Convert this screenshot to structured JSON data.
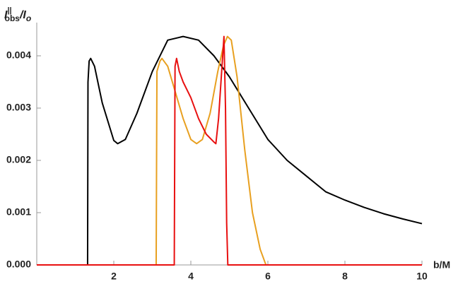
{
  "chart_data": {
    "type": "line",
    "xlabel": "b/M",
    "ylabel": {
      "base": "I",
      "superscript": "||",
      "subscript": "obs",
      "rest": "/I",
      "rest_subscript": "o"
    },
    "xlim": [
      0,
      10
    ],
    "xticks": [
      2,
      4,
      6,
      8,
      10
    ],
    "ylim": [
      0,
      0.0045
    ],
    "yticks": [
      {
        "value": 0,
        "label": "0.000"
      },
      {
        "value": 0.001,
        "label": "0.001"
      },
      {
        "value": 0.002,
        "label": "0.002"
      },
      {
        "value": 0.003,
        "label": "0.003"
      },
      {
        "value": 0.004,
        "label": "0.004"
      }
    ],
    "series": [
      {
        "color": "#000000",
        "x": [
          0,
          1.32,
          1.33,
          1.36,
          1.4,
          1.5,
          1.7,
          2.0,
          2.1,
          2.3,
          2.6,
          3.0,
          3.4,
          3.8,
          4.2,
          4.6,
          5.0,
          5.5,
          6,
          6.5,
          7,
          7.5,
          8,
          8.5,
          9,
          9.5,
          10
        ],
        "values": [
          0,
          0,
          0.0035,
          0.0039,
          0.00395,
          0.0038,
          0.0031,
          0.00238,
          0.00232,
          0.0024,
          0.0029,
          0.0037,
          0.0043,
          0.00437,
          0.0043,
          0.004,
          0.0036,
          0.003,
          0.0024,
          0.002,
          0.0017,
          0.0014,
          0.00124,
          0.0011,
          0.00098,
          0.00088,
          0.00079
        ]
      },
      {
        "color": "#e8a020",
        "x": [
          0,
          3.1,
          3.12,
          3.2,
          3.25,
          3.4,
          3.6,
          3.8,
          4.0,
          4.15,
          4.3,
          4.5,
          4.7,
          4.85,
          4.95,
          5.05,
          5.2,
          5.4,
          5.6,
          5.8,
          5.95,
          10
        ],
        "values": [
          0,
          0,
          0.0037,
          0.0039,
          0.00395,
          0.0038,
          0.0033,
          0.0028,
          0.0024,
          0.00232,
          0.0024,
          0.0029,
          0.0037,
          0.0042,
          0.00437,
          0.0043,
          0.0036,
          0.0022,
          0.001,
          0.0003,
          0,
          0
        ]
      },
      {
        "color": "#e81010",
        "x": [
          0,
          3.57,
          3.59,
          3.63,
          3.7,
          3.8,
          4.0,
          4.2,
          4.4,
          4.6,
          4.65,
          4.72,
          4.8,
          4.86,
          4.9,
          4.93,
          4.96,
          10
        ],
        "values": [
          0,
          0,
          0.0038,
          0.00395,
          0.0037,
          0.0035,
          0.0032,
          0.0028,
          0.0025,
          0.00235,
          0.00232,
          0.0028,
          0.0037,
          0.00437,
          0.003,
          0.0008,
          0,
          0
        ]
      }
    ]
  }
}
